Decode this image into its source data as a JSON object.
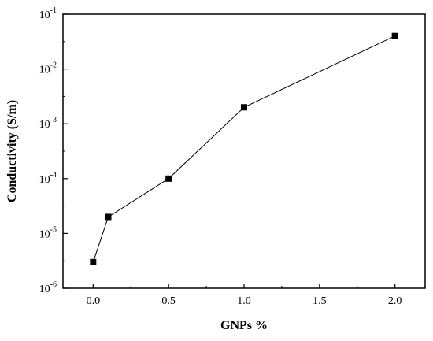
{
  "chart_data": {
    "type": "line",
    "xlabel": "GNPs %",
    "ylabel": "Conductivity (S/m)",
    "xlim": [
      -0.2,
      2.2
    ],
    "ylim": [
      1e-06,
      0.1
    ],
    "yscale": "log",
    "grid": false,
    "x_ticks": [
      {
        "value": 0.0,
        "label": "0.0"
      },
      {
        "value": 0.5,
        "label": "0.5"
      },
      {
        "value": 1.0,
        "label": "1.0"
      },
      {
        "value": 1.5,
        "label": "1.5"
      },
      {
        "value": 2.0,
        "label": "2.0"
      }
    ],
    "y_ticks": [
      {
        "exp": -6,
        "base": "10",
        "sup": "-6"
      },
      {
        "exp": -5,
        "base": "10",
        "sup": "-5"
      },
      {
        "exp": -4,
        "base": "10",
        "sup": "-4"
      },
      {
        "exp": -3,
        "base": "10",
        "sup": "-3"
      },
      {
        "exp": -2,
        "base": "10",
        "sup": "-2"
      },
      {
        "exp": -1,
        "base": "10",
        "sup": "-1"
      }
    ],
    "series": [
      {
        "marker": "square",
        "color": "#000000",
        "x": [
          0.0,
          0.1,
          0.5,
          1.0,
          2.0
        ],
        "y": [
          3e-06,
          2e-05,
          0.0001,
          0.002,
          0.04
        ]
      }
    ]
  }
}
